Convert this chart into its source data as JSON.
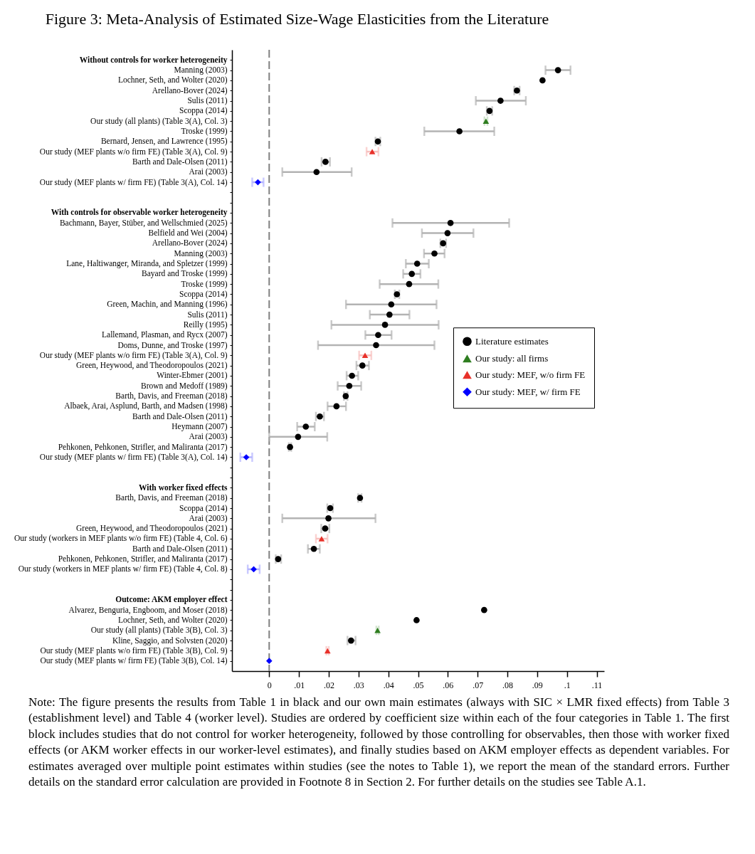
{
  "chart_data": {
    "type": "scatter",
    "orientation": "horizontal",
    "title": "Figure 3: Meta-Analysis of Estimated Size-Wage Elasticities from the Literature",
    "categories": [
      "Without controls for worker heterogeneity",
      "Manning (2003)",
      "Lochner, Seth, and Wolter (2020)",
      "Arellano-Bover (2024)",
      "Sulis (2011)",
      "Scoppa (2014)",
      "Our study (all plants) (Table 3(A), Col. 3)",
      "Troske (1999)",
      "Bernard, Jensen, and Lawrence (1995)",
      "Our study (MEF plants w/o firm FE) (Table 3(A), Col. 9)",
      "Barth and Dale-Olsen (2011)",
      "Arai (2003)",
      "Our study (MEF plants w/ firm FE) (Table 3(A), Col. 14)",
      null,
      null,
      "With controls for observable worker heterogeneity",
      "Bachmann, Bayer, Stüber, and Wellschmied (2025)",
      "Belfield and Wei (2004)",
      "Arellano-Bover (2024)",
      "Manning (2003)",
      "Lane, Haltiwanger, Miranda, and Spletzer (1999)",
      "Bayard and Troske (1999)",
      "Troske (1999)",
      "Scoppa (2014)",
      "Green, Machin, and Manning (1996)",
      "Sulis (2011)",
      "Reilly (1995)",
      "Lallemand, Plasman, and Rycx (2007)",
      "Doms, Dunne, and Troske (1997)",
      "Our study (MEF plants w/o firm FE) (Table 3(A), Col. 9)",
      "Green, Heywood, and Theodoropoulos (2021)",
      "Winter-Ebmer (2001)",
      "Brown and Medoff (1989)",
      "Barth, Davis, and Freeman (2018)",
      "Albaek, Arai, Asplund, Barth, and Madsen (1998)",
      "Barth and Dale-Olsen (2011)",
      "Heymann (2007)",
      "Arai (2003)",
      "Pehkonen, Pehkonen, Strifler, and Maliranta (2017)",
      "Our study (MEF plants w/ firm FE) (Table 3(A), Col. 14)",
      null,
      null,
      "With worker fixed effects",
      "Barth, Davis, and Freeman (2018)",
      "Scoppa (2014)",
      "Arai (2003)",
      "Green, Heywood, and Theodoropoulos (2021)",
      "Our study (workers in MEF plants w/o firm FE) (Table 4, Col. 6)",
      "Barth and Dale-Olsen (2011)",
      "Pehkonen, Pehkonen, Strifler, and Maliranta (2017)",
      "Our study (workers in MEF plants w/ firm FE) (Table 4, Col. 8)",
      null,
      null,
      "Outcome: AKM employer effect",
      "Alvarez, Benguria, Engboom, and Moser (2018)",
      "Lochner, Seth, and Wolter (2020)",
      "Our study (all plants) (Table 3(B), Col. 3)",
      "Kline, Saggio, and Solvsten (2020)",
      "Our study (MEF plants w/o firm FE) (Table 3(B), Col. 9)",
      "Our study (MEF plants w/ firm FE) (Table 3(B), Col. 14)"
    ],
    "series": [
      {
        "name": "Literature estimates",
        "color": "#000000",
        "marker": "circle",
        "values": [
          null,
          0.097,
          0.0918,
          0.0832,
          0.0777,
          0.074,
          null,
          0.0639,
          0.0365,
          null,
          0.0189,
          0.0159,
          null,
          null,
          null,
          null,
          0.0609,
          0.0599,
          0.0584,
          0.0555,
          0.0497,
          0.0479,
          0.047,
          0.0429,
          0.041,
          0.0404,
          0.0389,
          0.0366,
          0.0359,
          null,
          0.0313,
          0.0278,
          0.0269,
          0.0257,
          0.0226,
          0.017,
          0.0123,
          0.0097,
          0.007,
          null,
          null,
          null,
          null,
          0.0305,
          0.0205,
          0.0199,
          0.0188,
          null,
          0.015,
          0.003,
          null,
          null,
          null,
          null,
          0.0722,
          0.0495,
          null,
          0.0275,
          null,
          null
        ],
        "errors": [
          null,
          [
            0.0928,
            0.1012
          ],
          null,
          [
            0.0823,
            0.0841
          ],
          [
            0.0694,
            0.0862
          ],
          [
            0.0731,
            0.0749
          ],
          null,
          [
            0.0521,
            0.0756
          ],
          [
            0.0357,
            0.0373
          ],
          null,
          [
            0.0176,
            0.0204
          ],
          [
            0.0044,
            0.0277
          ],
          null,
          null,
          null,
          null,
          [
            0.0414,
            0.0806
          ],
          [
            0.0513,
            0.0686
          ],
          [
            0.0575,
            0.0594
          ],
          [
            0.052,
            0.0589
          ],
          [
            0.0459,
            0.0536
          ],
          [
            0.045,
            0.0508
          ],
          [
            0.0371,
            0.0568
          ],
          [
            0.0422,
            0.0437
          ],
          [
            0.0258,
            0.0562
          ],
          [
            0.0338,
            0.0471
          ],
          [
            0.0209,
            0.0569
          ],
          [
            0.0323,
            0.0411
          ],
          [
            0.0164,
            0.0555
          ],
          null,
          [
            0.0293,
            0.0335
          ],
          [
            0.026,
            0.0299
          ],
          [
            0.023,
            0.0309
          ],
          [
            0.0251,
            0.0263
          ],
          [
            0.0196,
            0.0258
          ],
          [
            0.0157,
            0.0184
          ],
          [
            0.0094,
            0.0153
          ],
          [
            0,
            0.0195
          ],
          [
            0.0066,
            0.0074
          ],
          null,
          null,
          null,
          null,
          [
            0.0299,
            0.031
          ],
          [
            0.0195,
            0.0214
          ],
          [
            0.0044,
            0.0357
          ],
          [
            0.0175,
            0.0202
          ],
          null,
          [
            0.013,
            0.017
          ],
          [
            0.0022,
            0.004
          ],
          null,
          null,
          null,
          null,
          null,
          null,
          null,
          [
            0.0263,
            0.029
          ],
          null,
          null
        ]
      },
      {
        "name": "Our study: all firms",
        "color": "#2e7d1f",
        "marker": "triangle",
        "values": [
          null,
          null,
          null,
          null,
          null,
          null,
          0.0728,
          null,
          null,
          null,
          null,
          null,
          null,
          null,
          null,
          null,
          null,
          null,
          null,
          null,
          null,
          null,
          null,
          null,
          null,
          null,
          null,
          null,
          null,
          null,
          null,
          null,
          null,
          null,
          null,
          null,
          null,
          null,
          null,
          null,
          null,
          null,
          null,
          null,
          null,
          null,
          null,
          null,
          null,
          null,
          null,
          null,
          null,
          null,
          null,
          null,
          0.0364,
          null,
          null,
          null
        ],
        "errors": [
          null,
          null,
          null,
          null,
          null,
          null,
          [
            0.0723,
            0.0733
          ],
          null,
          null,
          null,
          null,
          null,
          null,
          null,
          null,
          null,
          null,
          null,
          null,
          null,
          null,
          null,
          null,
          null,
          null,
          null,
          null,
          null,
          null,
          null,
          null,
          null,
          null,
          null,
          null,
          null,
          null,
          null,
          null,
          null,
          null,
          null,
          null,
          null,
          null,
          null,
          null,
          null,
          null,
          null,
          null,
          null,
          null,
          null,
          null,
          null,
          [
            0.036,
            0.0368
          ],
          null,
          null,
          null
        ]
      },
      {
        "name": "Our study: MEF, w/o firm FE",
        "color": "#e8312a",
        "marker": "triangle",
        "values": [
          null,
          null,
          null,
          null,
          null,
          null,
          null,
          null,
          null,
          0.0346,
          null,
          null,
          null,
          null,
          null,
          null,
          null,
          null,
          null,
          null,
          null,
          null,
          null,
          null,
          null,
          null,
          null,
          null,
          null,
          0.0322,
          null,
          null,
          null,
          null,
          null,
          null,
          null,
          null,
          null,
          null,
          null,
          null,
          null,
          null,
          null,
          null,
          null,
          0.0176,
          null,
          null,
          null,
          null,
          null,
          null,
          null,
          null,
          null,
          null,
          0.0196,
          null
        ],
        "errors": [
          null,
          null,
          null,
          null,
          null,
          null,
          null,
          null,
          null,
          [
            0.0327,
            0.0367
          ],
          null,
          null,
          null,
          null,
          null,
          null,
          null,
          null,
          null,
          null,
          null,
          null,
          null,
          null,
          null,
          null,
          null,
          null,
          null,
          [
            0.0302,
            0.0343
          ],
          null,
          null,
          null,
          null,
          null,
          null,
          null,
          null,
          null,
          null,
          null,
          null,
          null,
          null,
          null,
          null,
          null,
          [
            0.0157,
            0.0196
          ],
          null,
          null,
          null,
          null,
          null,
          null,
          null,
          null,
          null,
          null,
          [
            0.0192,
            0.02
          ],
          null
        ]
      },
      {
        "name": "Our study: MEF, w/ firm FE",
        "color": "#0000ff",
        "marker": "diamond",
        "values": [
          null,
          null,
          null,
          null,
          null,
          null,
          null,
          null,
          null,
          null,
          null,
          null,
          -0.0038,
          null,
          null,
          null,
          null,
          null,
          null,
          null,
          null,
          null,
          null,
          null,
          null,
          null,
          null,
          null,
          null,
          null,
          null,
          null,
          null,
          null,
          null,
          null,
          null,
          null,
          null,
          -0.0077,
          null,
          null,
          null,
          null,
          null,
          null,
          null,
          null,
          null,
          null,
          -0.0052,
          null,
          null,
          null,
          null,
          null,
          null,
          null,
          null,
          0
        ],
        "errors": [
          null,
          null,
          null,
          null,
          null,
          null,
          null,
          null,
          null,
          null,
          null,
          null,
          [
            -0.0057,
            -0.0019
          ],
          null,
          null,
          null,
          null,
          null,
          null,
          null,
          null,
          null,
          null,
          null,
          null,
          null,
          null,
          null,
          null,
          null,
          null,
          null,
          null,
          null,
          null,
          null,
          null,
          null,
          null,
          [
            -0.0097,
            -0.0057
          ],
          null,
          null,
          null,
          null,
          null,
          null,
          null,
          null,
          null,
          null,
          [
            -0.0072,
            -0.0032
          ],
          null,
          null,
          null,
          null,
          null,
          null,
          null,
          null,
          null
        ]
      }
    ],
    "xlim": [
      -0.0125,
      0.1125
    ],
    "xticks": [
      0,
      {
        "value": 0.01,
        "label": ".01"
      },
      {
        "value": 0.02,
        "label": ".02"
      },
      {
        "value": 0.03,
        "label": ".03"
      },
      {
        "value": 0.04,
        "label": ".04"
      },
      {
        "value": 0.05,
        "label": ".05"
      },
      {
        "value": 0.06,
        "label": ".06"
      },
      {
        "value": 0.07,
        "label": ".07"
      },
      {
        "value": 0.08,
        "label": ".08"
      },
      {
        "value": 0.09,
        "label": ".09"
      },
      {
        "value": 0.1,
        "label": ".1"
      },
      {
        "value": 0.11,
        "label": ".11"
      }
    ],
    "ref_lines": [
      {
        "axis": "x",
        "value": 0,
        "color": "#808080",
        "line_style": "dashed"
      }
    ],
    "legend": "right",
    "annotations": [
      "Note: The figure presents the results from Table 1 in black and our own main estimates (always with SIC × LMR fixed effects) from Table 3 (establishment level) and Table 4 (worker level). Studies are ordered by coefficient size within each of the four categories in Table 1. The first block includes studies that do not control for worker heterogeneity, followed by those controlling for observables, then those with worker fixed effects (or AKM worker effects in our worker-level estimates), and finally studies based on AKM employer effects as dependent variables. For estimates averaged over multiple point estimates within studies (see the notes to Table 1), we report the mean of the standard errors. Further details on the standard error calculation are provided in Footnote 8 in Section 2. For further details on the studies see Table A.1."
    ]
  }
}
